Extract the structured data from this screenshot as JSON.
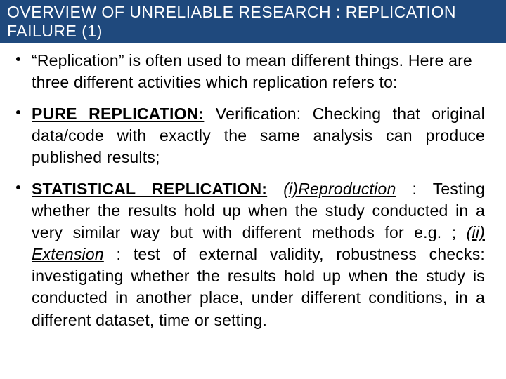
{
  "colors": {
    "title_bg": "#1f497d",
    "title_text": "#ffffff",
    "body_text": "#000000",
    "page_bg": "#ffffff"
  },
  "typography": {
    "title_fontsize": 23,
    "body_fontsize": 23,
    "line_height": 1.35,
    "font_family": "Arial Narrow"
  },
  "title": "OVERVIEW OF UNRELIABLE RESEARCH : REPLICATION FAILURE (1)",
  "bullets": [
    {
      "text": "“Replication” is often used to mean different things. Here are three different activities which replication refers to:",
      "justify": false
    },
    {
      "term": "PURE REPLICATION:",
      "rest": " Verification: Checking that original data/code with exactly the same analysis can produce published results;",
      "justify": true
    },
    {
      "term": "STATISTICAL REPLICATION:",
      "part1": " ",
      "italic1": "(i)Reproduction",
      "mid": " : Testing whether the results hold up when the study conducted in a very similar way but with different methods for e.g. ; ",
      "italic2": "(ii) Extension",
      "end": " : test of external validity, robustness checks: investigating whether the results hold up when the study is conducted in another place, under different conditions, in a different  dataset, time or setting.",
      "justify": true
    }
  ]
}
